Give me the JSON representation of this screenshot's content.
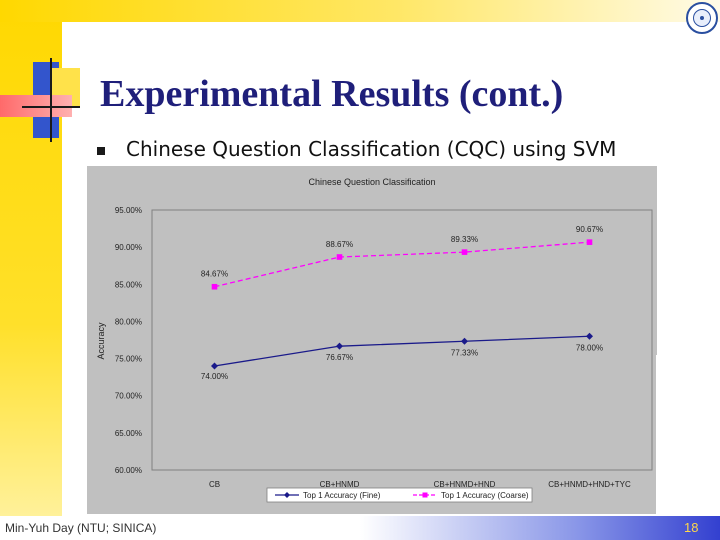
{
  "slide": {
    "title": "Experimental Results (cont.)",
    "bullet_text": "Chinese Question Classification (CQC) using SVM",
    "footer_left": "Min-Yuh Day (NTU; SINICA)",
    "page_number": "18",
    "logo_icon": "university-seal-icon"
  },
  "colors": {
    "title": "#1f1f7a",
    "fine_series": "#1a1a8a",
    "coarse_series": "#ff00ff",
    "chart_bg": "#c0c0c0",
    "accent_yellow": "#ffd800",
    "accent_blue": "#3340d0"
  },
  "chart_data": {
    "type": "line",
    "title": "Chinese Question Classification",
    "xlabel": "",
    "ylabel": "Accuracy",
    "categories": [
      "CB",
      "CB+HNMD",
      "CB+HNMD+HND",
      "CB+HNMD+HND+TYC"
    ],
    "ylim": [
      60,
      95
    ],
    "yticks": [
      "60.00%",
      "65.00%",
      "70.00%",
      "75.00%",
      "80.00%",
      "85.00%",
      "90.00%",
      "95.00%"
    ],
    "grid": false,
    "legend_position": "bottom",
    "series": [
      {
        "name": "Top 1 Accuracy (Fine)",
        "values": [
          74.0,
          76.67,
          77.33,
          78.0
        ],
        "labels": [
          "74.00%",
          "76.67%",
          "77.33%",
          "78.00%"
        ],
        "color": "#1a1a8a",
        "marker": "diamond",
        "dash": "solid"
      },
      {
        "name": "Top 1 Accuracy (Coarse)",
        "values": [
          84.67,
          88.67,
          89.33,
          90.67
        ],
        "labels": [
          "84.67%",
          "88.67%",
          "89.33%",
          "90.67%"
        ],
        "color": "#ff00ff",
        "marker": "square",
        "dash": "dashed"
      }
    ]
  }
}
